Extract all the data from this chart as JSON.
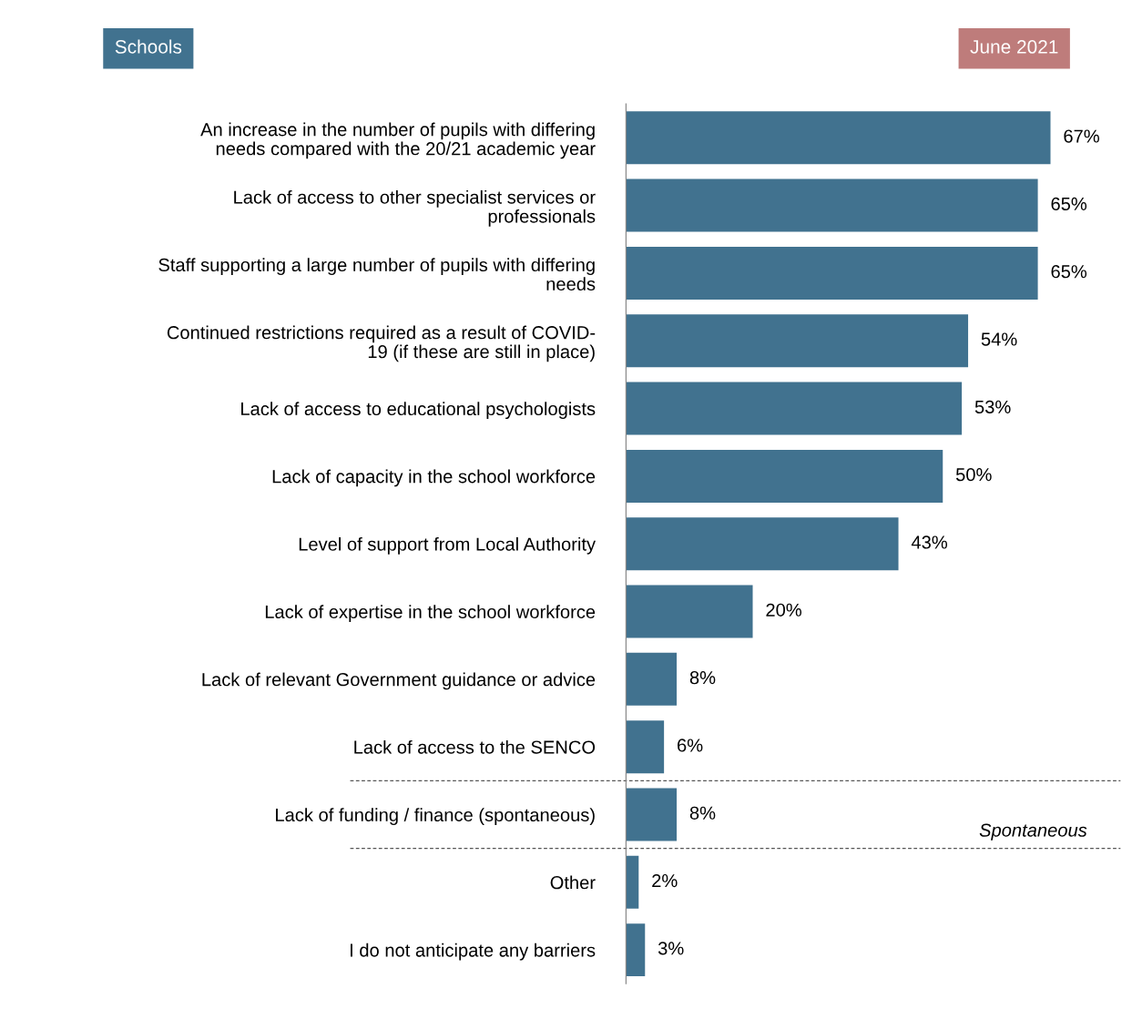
{
  "chart_data": {
    "type": "bar",
    "orientation": "horizontal",
    "title": "Schools",
    "subtitle": "June 2021",
    "categories": [
      "An increase in the number of pupils with differing\nneeds compared with the 20/21 academic year",
      "Lack of access to other specialist services or\nprofessionals",
      "Staff supporting a large number of pupils with differing\nneeds",
      "Continued restrictions required as a result of COVID-\n19 (if these are still in place)",
      "Lack of access to educational psychologists",
      "Lack of capacity in the school workforce",
      "Level of support from Local Authority",
      "Lack of expertise in the school workforce",
      "Lack of relevant Government guidance or advice",
      "Lack of access to the SENCO",
      "Lack of funding / finance (spontaneous)",
      "Other",
      "I do not anticipate any barriers"
    ],
    "values": [
      67,
      65,
      65,
      54,
      53,
      50,
      43,
      20,
      8,
      6,
      8,
      2,
      3
    ],
    "value_labels": [
      "67%",
      "65%",
      "65%",
      "54%",
      "53%",
      "50%",
      "43%",
      "20%",
      "8%",
      "6%",
      "8%",
      "2%",
      "3%"
    ],
    "color": "#41728f",
    "annotations": [
      "Spontaneous"
    ]
  }
}
